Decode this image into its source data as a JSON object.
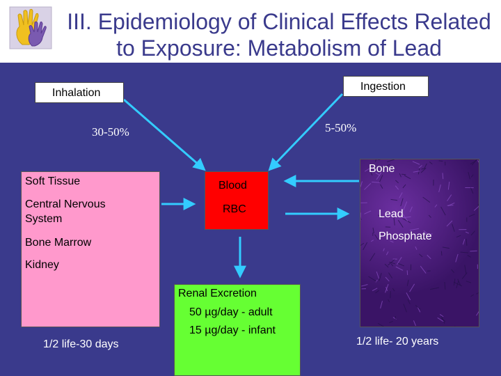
{
  "title": {
    "line1": "III. Epidemiology of Clinical Effects Related",
    "line2": "to Exposure: Metabolism of Lead"
  },
  "inhalation": {
    "label": "Inhalation",
    "absorption": "30-50%"
  },
  "ingestion": {
    "label": "Ingestion",
    "absorption": "5-50%"
  },
  "soft_tissue": {
    "title": "Soft Tissue",
    "items": [
      "Central Nervous",
      "System",
      "Bone Marrow",
      "Kidney"
    ],
    "half_life": "1/2 life-30 days"
  },
  "blood": {
    "title": "Blood",
    "subtitle": "RBC"
  },
  "bone": {
    "title": "Bone",
    "items": [
      "Lead",
      "Phosphate"
    ],
    "half_life": "1/2 life- 20 years"
  },
  "renal": {
    "title": "Renal Excretion",
    "adult": "50 µg/day - adult",
    "infant": "15 µg/day - infant"
  },
  "colors": {
    "background": "#3a3a8c",
    "arrow": "#33ccff",
    "soft_tissue": "#ff99cc",
    "blood": "#ff0000",
    "renal": "#66ff33",
    "bone": "#3a1466"
  }
}
